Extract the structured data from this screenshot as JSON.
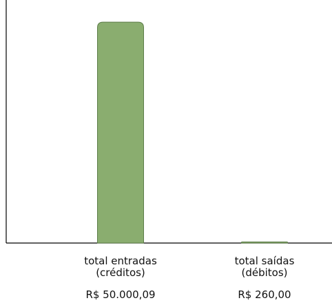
{
  "chart_data": {
    "type": "bar",
    "categories": [
      [
        "total entradas",
        "(créditos)"
      ],
      [
        "total saídas",
        "(débitos)"
      ]
    ],
    "values": [
      50000.09,
      260.0
    ],
    "value_labels": [
      "R$ 50.000,09",
      "R$ 260,00"
    ],
    "title": "",
    "xlabel": "",
    "ylabel": "",
    "ylim": [
      0,
      55000
    ],
    "grid": false,
    "legend": "none",
    "bar_color": "#8aad6f",
    "bar_border_color": "#5d7d4a",
    "axis_color": "#000000"
  }
}
